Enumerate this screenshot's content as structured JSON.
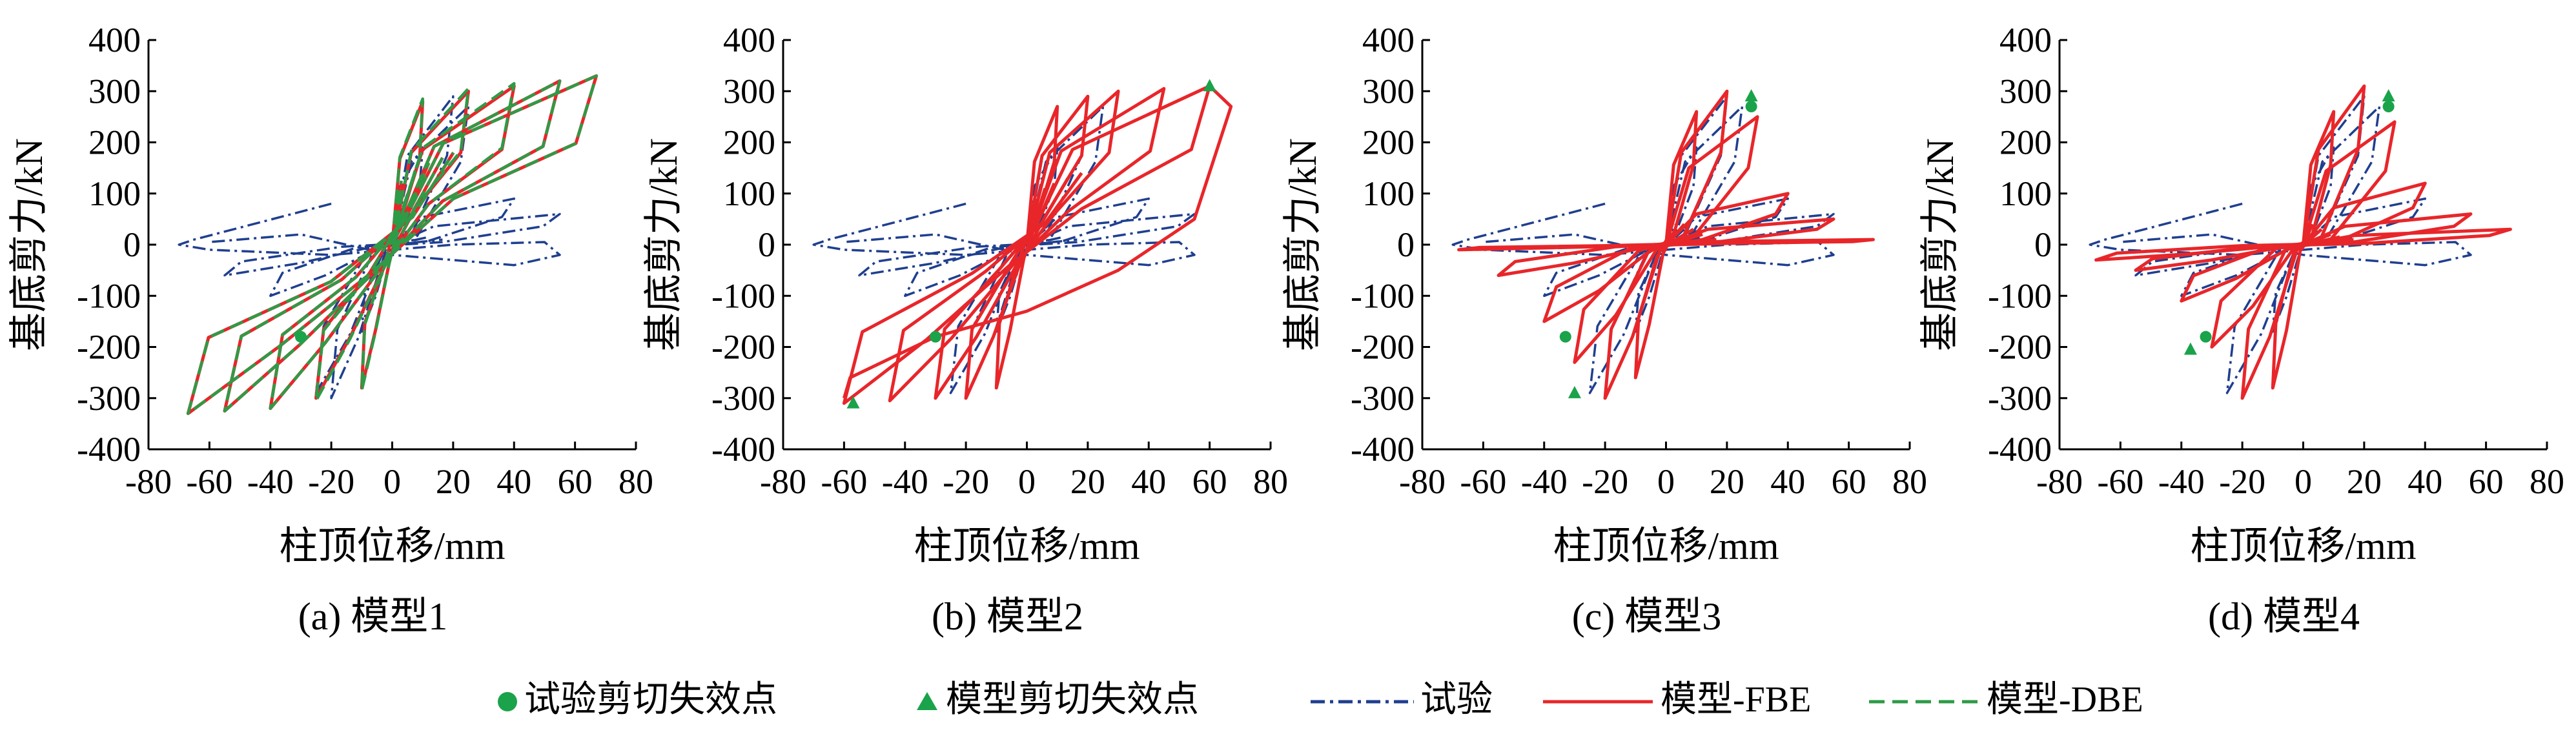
{
  "figure": {
    "legend": {
      "test_failure": "试验剪切失效点",
      "model_failure": "模型剪切失效点",
      "test": "试验",
      "fbe": "模型-FBE",
      "dbe": "模型-DBE"
    }
  },
  "colors": {
    "test": "#1f3f8f",
    "fbe": "#e8262a",
    "dbe": "#2e9b47",
    "marker": "#1aa34a"
  },
  "chart_data": [
    {
      "type": "line",
      "caption": "(a) 模型1",
      "xlabel": "柱顶位移/mm",
      "ylabel": "基底剪力/kN",
      "xlim": [
        -80,
        80
      ],
      "ylim": [
        -400,
        400
      ],
      "xticks": [
        -80,
        -60,
        -40,
        -20,
        0,
        20,
        40,
        60,
        80
      ],
      "yticks": [
        -400,
        -300,
        -200,
        -100,
        0,
        100,
        200,
        300,
        400
      ],
      "x_tick_labels": [
        "-80",
        "-60",
        "-40",
        "-20",
        "0",
        "20",
        "40",
        "60",
        "80"
      ],
      "y_tick_labels": [
        "-400",
        "-300",
        "-200",
        "-100",
        "0",
        "100",
        "200",
        "300",
        "400"
      ],
      "series": [
        {
          "name": "试验",
          "style": "dashdot",
          "loops": [
            {
              "amp": 10,
              "peakPos": 190,
              "peakNeg": -170,
              "res": 40
            },
            {
              "amp": 20,
              "peakPos": 290,
              "peakNeg": -300,
              "res": 30
            },
            {
              "amp": 25,
              "peakPos": 270,
              "peakNeg": -290,
              "res": 20
            },
            {
              "amp": 40,
              "peakPos": 90,
              "peakNeg": -100,
              "res": 15
            },
            {
              "amp": 55,
              "peakPos": 60,
              "peakNeg": -60,
              "res": 10
            }
          ],
          "tail": [
            [
              -20,
              80
            ],
            [
              -65,
              10
            ],
            [
              -70,
              0
            ],
            [
              -60,
              -10
            ],
            [
              -20,
              -20
            ],
            [
              20,
              0
            ],
            [
              50,
              5
            ],
            [
              55,
              -20
            ],
            [
              40,
              -40
            ],
            [
              0,
              -20
            ],
            [
              -30,
              20
            ],
            [
              -60,
              5
            ]
          ]
        },
        {
          "name": "模型-FBE",
          "style": "solid",
          "loops": [
            {
              "amp": 10,
              "peakPos": 280,
              "peakNeg": -280,
              "res": 120
            },
            {
              "amp": 25,
              "peakPos": 300,
              "peakNeg": -300,
              "res": 140
            },
            {
              "amp": 40,
              "peakPos": 310,
              "peakNeg": -320,
              "res": 160
            },
            {
              "amp": 55,
              "peakPos": 320,
              "peakNeg": -325,
              "res": 170
            },
            {
              "amp": 67,
              "peakPos": 330,
              "peakNeg": -330,
              "res": 180
            }
          ]
        },
        {
          "name": "模型-DBE",
          "style": "dashed",
          "loops": [
            {
              "amp": 10,
              "peakPos": 285,
              "peakNeg": -285,
              "res": 125
            },
            {
              "amp": 25,
              "peakPos": 305,
              "peakNeg": -305,
              "res": 145
            },
            {
              "amp": 40,
              "peakPos": 315,
              "peakNeg": -320,
              "res": 160
            },
            {
              "amp": 55,
              "peakPos": 320,
              "peakNeg": -325,
              "res": 170
            },
            {
              "amp": 67,
              "peakPos": 330,
              "peakNeg": -330,
              "res": 180
            }
          ]
        }
      ],
      "test_failure_points": [
        [
          -30,
          -180
        ]
      ],
      "model_failure_points": []
    },
    {
      "type": "line",
      "caption": "(b) 模型2",
      "xlabel": "柱顶位移/mm",
      "ylabel": "基底剪力/kN",
      "xlim": [
        -80,
        80
      ],
      "ylim": [
        -400,
        400
      ],
      "xticks": [
        -80,
        -60,
        -40,
        -20,
        0,
        20,
        40,
        60,
        80
      ],
      "yticks": [
        -400,
        -300,
        -200,
        -100,
        0,
        100,
        200,
        300,
        400
      ],
      "x_tick_labels": [
        "-80",
        "-60",
        "-40",
        "-20",
        "0",
        "20",
        "40",
        "60",
        "80"
      ],
      "y_tick_labels": [
        "-400",
        "-300",
        "-200",
        "-100",
        "0",
        "100",
        "200",
        "300",
        "400"
      ],
      "series": [
        {
          "name": "试验",
          "style": "dashdot",
          "loops": [
            {
              "amp": 10,
              "peakPos": 190,
              "peakNeg": -170,
              "res": 40
            },
            {
              "amp": 20,
              "peakPos": 290,
              "peakNeg": -300,
              "res": 30
            },
            {
              "amp": 25,
              "peakPos": 270,
              "peakNeg": -290,
              "res": 20
            },
            {
              "amp": 40,
              "peakPos": 90,
              "peakNeg": -100,
              "res": 15
            },
            {
              "amp": 55,
              "peakPos": 60,
              "peakNeg": -60,
              "res": 10
            }
          ],
          "tail": [
            [
              -20,
              80
            ],
            [
              -65,
              10
            ],
            [
              -70,
              0
            ],
            [
              -60,
              -10
            ],
            [
              -20,
              -20
            ],
            [
              20,
              0
            ],
            [
              50,
              5
            ],
            [
              55,
              -20
            ],
            [
              40,
              -40
            ],
            [
              0,
              -20
            ],
            [
              -30,
              20
            ],
            [
              -60,
              5
            ]
          ]
        },
        {
          "name": "模型-FBE",
          "style": "solid",
          "loops": [
            {
              "amp": 10,
              "peakPos": 270,
              "peakNeg": -280,
              "res": 90
            },
            {
              "amp": 20,
              "peakPos": 290,
              "peakNeg": -300,
              "res": 110
            },
            {
              "amp": 30,
              "peakPos": 300,
              "peakNeg": -300,
              "res": 120
            },
            {
              "amp": 45,
              "peakPos": 305,
              "peakNeg": -305,
              "res": 130
            },
            {
              "amp": 60,
              "peakPos": 310,
              "peakNeg": -310,
              "res": 140
            }
          ],
          "tail": [
            [
              60,
              310
            ],
            [
              67,
              270
            ],
            [
              55,
              50
            ],
            [
              30,
              -50
            ],
            [
              0,
              -130
            ],
            [
              -30,
              -180
            ],
            [
              -58,
              -260
            ],
            [
              -60,
              -300
            ]
          ]
        }
      ],
      "test_failure_points": [
        [
          -30,
          -180
        ]
      ],
      "model_failure_points": [
        [
          60,
          310
        ],
        [
          -57,
          -310
        ]
      ]
    },
    {
      "type": "line",
      "caption": "(c) 模型3",
      "xlabel": "柱顶位移/mm",
      "ylabel": "基底剪力/kN",
      "xlim": [
        -80,
        80
      ],
      "ylim": [
        -400,
        400
      ],
      "xticks": [
        -80,
        -60,
        -40,
        -20,
        0,
        20,
        40,
        60,
        80
      ],
      "yticks": [
        -400,
        -300,
        -200,
        -100,
        0,
        100,
        200,
        300,
        400
      ],
      "x_tick_labels": [
        "-80",
        "-60",
        "-40",
        "-20",
        "0",
        "20",
        "40",
        "60",
        "80"
      ],
      "y_tick_labels": [
        "-400",
        "-300",
        "-200",
        "-100",
        "0",
        "100",
        "200",
        "300",
        "400"
      ],
      "series": [
        {
          "name": "试验",
          "style": "dashdot",
          "loops": [
            {
              "amp": 10,
              "peakPos": 190,
              "peakNeg": -170,
              "res": 40
            },
            {
              "amp": 20,
              "peakPos": 290,
              "peakNeg": -300,
              "res": 30
            },
            {
              "amp": 25,
              "peakPos": 270,
              "peakNeg": -290,
              "res": 20
            },
            {
              "amp": 40,
              "peakPos": 90,
              "peakNeg": -100,
              "res": 15
            },
            {
              "amp": 55,
              "peakPos": 60,
              "peakNeg": -60,
              "res": 10
            }
          ],
          "tail": [
            [
              -20,
              80
            ],
            [
              -65,
              10
            ],
            [
              -70,
              0
            ],
            [
              -60,
              -10
            ],
            [
              -20,
              -20
            ],
            [
              20,
              0
            ],
            [
              50,
              5
            ],
            [
              55,
              -20
            ],
            [
              40,
              -40
            ],
            [
              0,
              -20
            ],
            [
              -30,
              20
            ],
            [
              -60,
              5
            ]
          ]
        },
        {
          "name": "模型-FBE",
          "style": "solid",
          "loops": [
            {
              "amp": 10,
              "peakPos": 260,
              "peakNeg": -260,
              "res": 60
            },
            {
              "amp": 20,
              "peakPos": 300,
              "peakNeg": -300,
              "res": 40
            },
            {
              "amp": 30,
              "peakPos": 250,
              "peakNeg": -230,
              "res": 30
            },
            {
              "amp": 40,
              "peakPos": 100,
              "peakNeg": -150,
              "res": 20
            },
            {
              "amp": 55,
              "peakPos": 50,
              "peakNeg": -60,
              "res": 10
            },
            {
              "amp": 68,
              "peakPos": 10,
              "peakNeg": -10,
              "res": 5
            }
          ]
        }
      ],
      "test_failure_points": [
        [
          -33,
          -180
        ],
        [
          28,
          270
        ]
      ],
      "model_failure_points": [
        [
          -30,
          -290
        ],
        [
          28,
          290
        ]
      ]
    },
    {
      "type": "line",
      "caption": "(d) 模型4",
      "xlabel": "柱顶位移/mm",
      "ylabel": "基底剪力/kN",
      "xlim": [
        -80,
        80
      ],
      "ylim": [
        -400,
        400
      ],
      "xticks": [
        -80,
        -60,
        -40,
        -20,
        0,
        20,
        40,
        60,
        80
      ],
      "yticks": [
        -400,
        -300,
        -200,
        -100,
        0,
        100,
        200,
        300,
        400
      ],
      "x_tick_labels": [
        "-80",
        "-60",
        "-40",
        "-20",
        "0",
        "20",
        "40",
        "60",
        "80"
      ],
      "y_tick_labels": [
        "-400",
        "-300",
        "-200",
        "-100",
        "0",
        "100",
        "200",
        "300",
        "400"
      ],
      "series": [
        {
          "name": "试验",
          "style": "dashdot",
          "loops": [
            {
              "amp": 10,
              "peakPos": 190,
              "peakNeg": -170,
              "res": 40
            },
            {
              "amp": 20,
              "peakPos": 290,
              "peakNeg": -300,
              "res": 30
            },
            {
              "amp": 25,
              "peakPos": 270,
              "peakNeg": -290,
              "res": 20
            },
            {
              "amp": 40,
              "peakPos": 90,
              "peakNeg": -100,
              "res": 15
            },
            {
              "amp": 55,
              "peakPos": 60,
              "peakNeg": -60,
              "res": 10
            }
          ],
          "tail": [
            [
              -20,
              80
            ],
            [
              -65,
              10
            ],
            [
              -70,
              0
            ],
            [
              -60,
              -10
            ],
            [
              -20,
              -20
            ],
            [
              20,
              0
            ],
            [
              50,
              5
            ],
            [
              55,
              -20
            ],
            [
              40,
              -40
            ],
            [
              0,
              -20
            ],
            [
              -30,
              20
            ],
            [
              -60,
              5
            ]
          ]
        },
        {
          "name": "模型-FBE",
          "style": "solid",
          "loops": [
            {
              "amp": 10,
              "peakPos": 260,
              "peakNeg": -280,
              "res": 40
            },
            {
              "amp": 20,
              "peakPos": 310,
              "peakNeg": -300,
              "res": 30
            },
            {
              "amp": 30,
              "peakPos": 240,
              "peakNeg": -200,
              "res": 20
            },
            {
              "amp": 40,
              "peakPos": 120,
              "peakNeg": -110,
              "res": 15
            },
            {
              "amp": 55,
              "peakPos": 60,
              "peakNeg": -50,
              "res": 10
            },
            {
              "amp": 68,
              "peakPos": 30,
              "peakNeg": -30,
              "res": 5
            }
          ]
        }
      ],
      "test_failure_points": [
        [
          -32,
          -180
        ],
        [
          28,
          270
        ]
      ],
      "model_failure_points": [
        [
          -37,
          -205
        ],
        [
          28,
          290
        ]
      ]
    }
  ]
}
